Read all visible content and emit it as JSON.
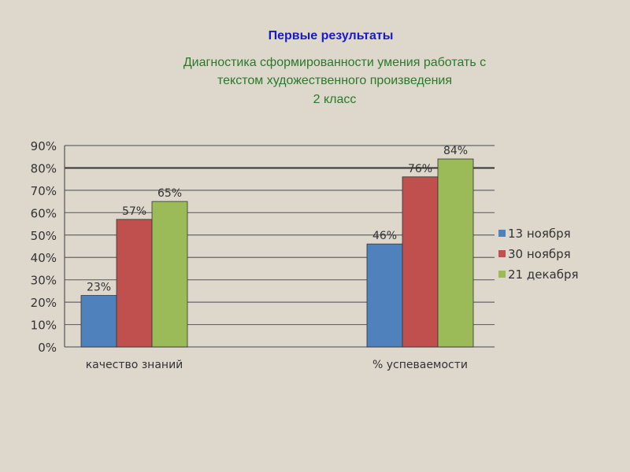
{
  "header": {
    "title": "Первые результаты",
    "subtitle_line1": "Диагностика сформированности умения работать с",
    "subtitle_line2": "текстом художественного произведения",
    "subtitle_line3": "2 класс"
  },
  "chart_data": {
    "type": "bar",
    "categories": [
      "качество знаний",
      "% успеваемости"
    ],
    "series": [
      {
        "name": "13 ноября",
        "values": [
          23,
          46
        ],
        "color": "#4f81bd"
      },
      {
        "name": "30 ноября",
        "values": [
          57,
          76
        ],
        "color": "#c0504d"
      },
      {
        "name": "21 декабря",
        "values": [
          65,
          84
        ],
        "color": "#9bbb59"
      }
    ],
    "ylim": [
      0,
      90
    ],
    "yticks": [
      "0%",
      "10%",
      "20%",
      "30%",
      "40%",
      "50%",
      "60%",
      "70%",
      "80%",
      "90%"
    ],
    "value_suffix": "%",
    "grid": true,
    "legend": "right"
  }
}
